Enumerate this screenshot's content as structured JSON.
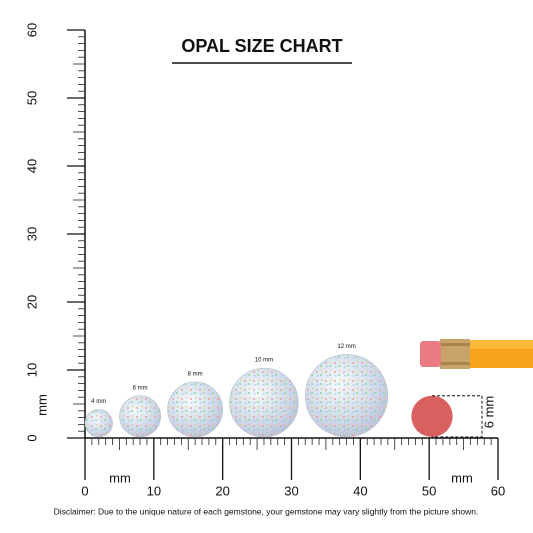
{
  "title": "OPAL SIZE CHART",
  "ruler": {
    "unit": "mm",
    "xlim": [
      0,
      60
    ],
    "xticks": [
      0,
      10,
      20,
      30,
      40,
      50,
      60
    ],
    "ylim": [
      0,
      60
    ],
    "yticks": [
      0,
      10,
      20,
      30,
      40,
      50,
      60
    ]
  },
  "gems": {
    "sizes": [
      4,
      6,
      8,
      10,
      12
    ],
    "size_labels": [
      "4 mm",
      "6 mm",
      "8 mm",
      "10 mm",
      "12 mm"
    ]
  },
  "eraser": {
    "size": 6,
    "size_label": "6 mm"
  },
  "disclaimer": "Disclaimer: Due to the unique nature of each gemstone, your gemstone may vary slightly from the picture shown."
}
